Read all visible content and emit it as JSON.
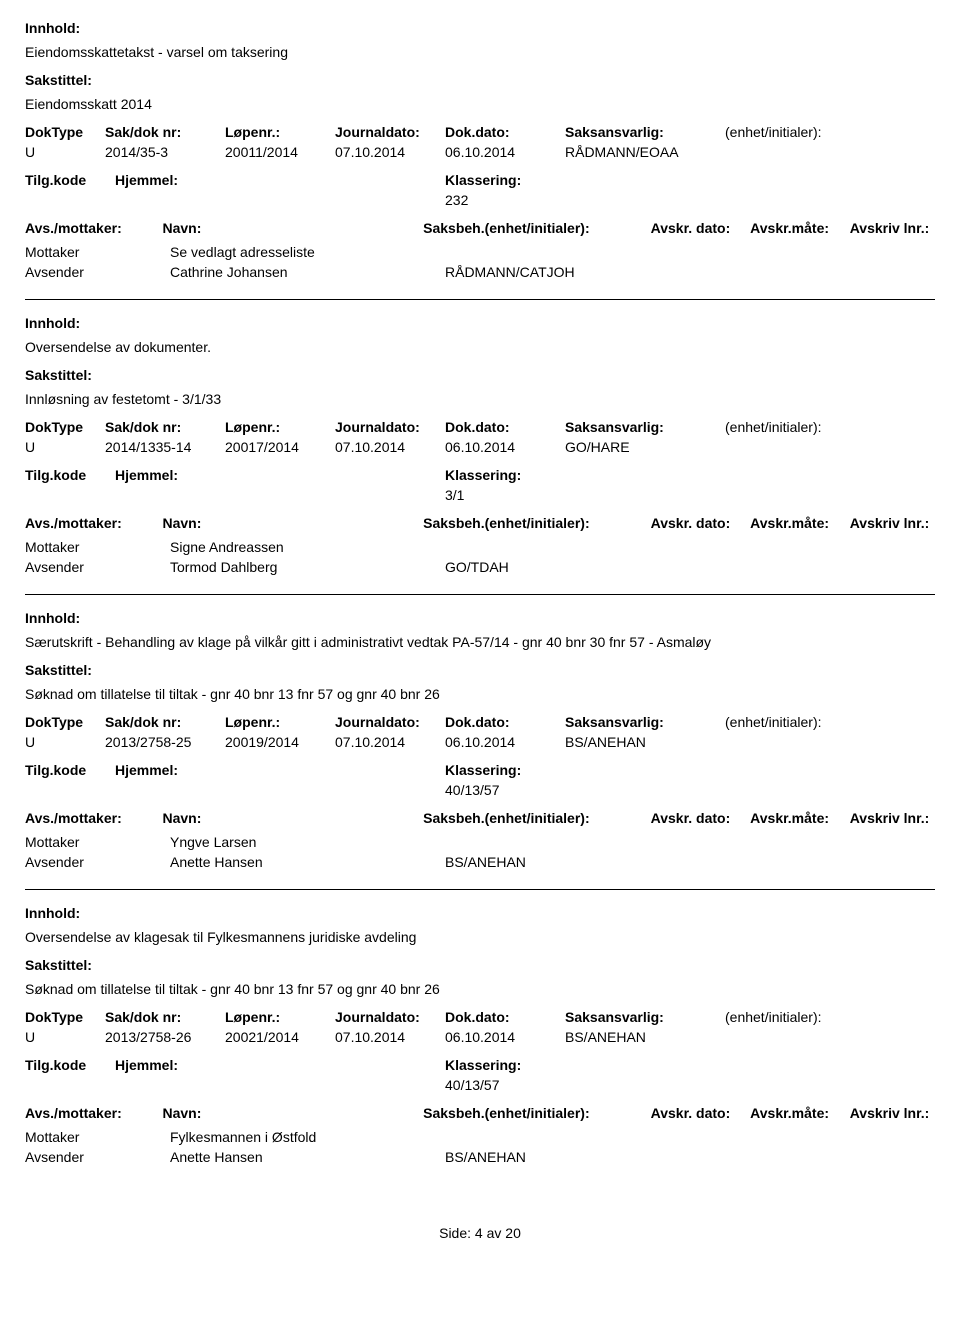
{
  "labels": {
    "innhold": "Innhold:",
    "sakstittel": "Sakstittel:",
    "doktype": "DokType",
    "sakdoknr": "Sak/dok nr:",
    "lopenr": "Løpenr.:",
    "journaldato": "Journaldato:",
    "dokdato": "Dok.dato:",
    "saksansvarlig": "Saksansvarlig:",
    "enhet": "(enhet/initialer):",
    "tilgkode": "Tilg.kode",
    "hjemmel": "Hjemmel:",
    "klassering": "Klassering:",
    "avsmottaker": "Avs./mottaker:",
    "navn": "Navn:",
    "saksbeh": "Saksbeh.(enhet/initialer):",
    "avskrdato": "Avskr. dato:",
    "avskrmaate": "Avskr.måte:",
    "avskrivlnr": "Avskriv lnr.:",
    "mottaker": "Mottaker",
    "avsender": "Avsender"
  },
  "records": [
    {
      "innhold": "Eiendomsskattetakst - varsel om taksering",
      "sakstittel": "Eiendomsskatt 2014",
      "doktype": "U",
      "sakdoknr": "2014/35-3",
      "lopenr": "20011/2014",
      "journaldato": "07.10.2014",
      "dokdato": "06.10.2014",
      "saksansvarlig": "RÅDMANN/EOAA",
      "klassering": "232",
      "mottaker_name": "Se vedlagt adresseliste",
      "avsender_name": "Cathrine Johansen",
      "avsender_code": "RÅDMANN/CATJOH"
    },
    {
      "innhold": "Oversendelse av dokumenter.",
      "sakstittel": "Innløsning av festetomt -  3/1/33",
      "doktype": "U",
      "sakdoknr": "2014/1335-14",
      "lopenr": "20017/2014",
      "journaldato": "07.10.2014",
      "dokdato": "06.10.2014",
      "saksansvarlig": "GO/HARE",
      "klassering": "3/1",
      "mottaker_name": "Signe Andreassen",
      "avsender_name": "Tormod Dahlberg",
      "avsender_code": "GO/TDAH"
    },
    {
      "innhold": "Særutskrift - Behandling av klage på vilkår gitt i administrativt vedtak PA-57/14 - gnr 40 bnr 30 fnr 57 - Asmaløy",
      "sakstittel": "Søknad om tillatelse til tiltak - gnr 40 bnr 13 fnr 57 og gnr 40 bnr 26",
      "doktype": "U",
      "sakdoknr": "2013/2758-25",
      "lopenr": "20019/2014",
      "journaldato": "07.10.2014",
      "dokdato": "06.10.2014",
      "saksansvarlig": "BS/ANEHAN",
      "klassering": "40/13/57",
      "mottaker_name": "Yngve Larsen",
      "avsender_name": "Anette Hansen",
      "avsender_code": "BS/ANEHAN"
    },
    {
      "innhold": "Oversendelse av klagesak til Fylkesmannens juridiske avdeling",
      "sakstittel": "Søknad om tillatelse til tiltak - gnr 40 bnr 13 fnr 57 og gnr 40 bnr 26",
      "doktype": "U",
      "sakdoknr": "2013/2758-26",
      "lopenr": "20021/2014",
      "journaldato": "07.10.2014",
      "dokdato": "06.10.2014",
      "saksansvarlig": "BS/ANEHAN",
      "klassering": "40/13/57",
      "mottaker_name": "Fylkesmannen i Østfold",
      "avsender_name": "Anette Hansen",
      "avsender_code": "BS/ANEHAN"
    }
  ],
  "footer": {
    "prefix": "Side:",
    "page": "4",
    "mid": "av",
    "total": "20"
  }
}
